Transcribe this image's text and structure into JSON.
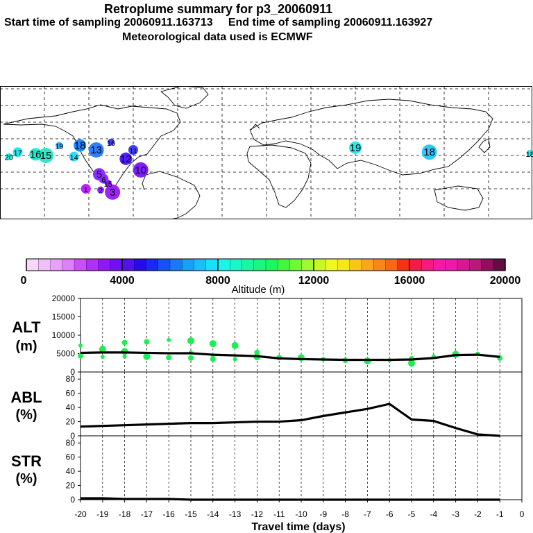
{
  "title": "Retroplume summary for p3_20060911",
  "subtitle_line": "Start time of sampling 20060911.163713     End time of sampling 20060911.163927",
  "met_line": "Meteorological data used is ECMWF",
  "map": {
    "labels": [
      {
        "text": "20",
        "lon": -174,
        "lat": 14,
        "color": "#2fe8e8"
      },
      {
        "text": "17",
        "lon": -168,
        "lat": 18,
        "color": "#27e8f0"
      },
      {
        "text": "16",
        "lon": -156,
        "lat": 16,
        "color": "#27e8d0"
      },
      {
        "text": "15",
        "lon": -149,
        "lat": 15,
        "color": "#2fe8c8"
      },
      {
        "text": "19",
        "lon": -140,
        "lat": 24,
        "color": "#2fa8ff"
      },
      {
        "text": "14",
        "lon": -130,
        "lat": 14,
        "color": "#2fe0ff"
      },
      {
        "text": "18",
        "lon": -126,
        "lat": 24,
        "color": "#1f88ff"
      },
      {
        "text": "13",
        "lon": -115,
        "lat": 20,
        "color": "#2f80ff"
      },
      {
        "text": "16",
        "lon": -105,
        "lat": 27,
        "color": "#3f3fff"
      },
      {
        "text": "11",
        "lon": -90,
        "lat": 20,
        "color": "#3f3fff"
      },
      {
        "text": "12",
        "lon": -95,
        "lat": 12,
        "color": "#5020ff"
      },
      {
        "text": "10",
        "lon": -85,
        "lat": 2,
        "color": "#7f1fff"
      },
      {
        "text": "15",
        "lon": -107,
        "lat": -10,
        "color": "#7f1fff"
      },
      {
        "text": "6",
        "lon": -110,
        "lat": -6,
        "color": "#8f2fff"
      },
      {
        "text": "5",
        "lon": -113,
        "lat": -2,
        "color": "#8f2fff"
      },
      {
        "text": "3",
        "lon": -104,
        "lat": -18,
        "color": "#a020ff"
      },
      {
        "text": "2",
        "lon": -112,
        "lat": -16,
        "color": "#a020ff"
      },
      {
        "text": "1",
        "lon": -122,
        "lat": -15,
        "color": "#c020ff"
      },
      {
        "text": "19",
        "lon": 60,
        "lat": 22,
        "color": "#2fe8e8"
      },
      {
        "text": "18",
        "lon": 110,
        "lat": 18,
        "color": "#2fc8ff"
      },
      {
        "text": "18",
        "lon": 178,
        "lat": 17,
        "color": "#2fe8e8"
      }
    ]
  },
  "colorbar": {
    "xlabel": "Altitude (m)",
    "tick_labels": [
      "0",
      "4000",
      "8000",
      "12000",
      "16000",
      "20000"
    ],
    "colors": [
      "#f8d8f8",
      "#f0c0f8",
      "#e8a0f8",
      "#e080f8",
      "#c850f8",
      "#b030f8",
      "#9018f8",
      "#7010f8",
      "#5010f0",
      "#2808f0",
      "#1828f8",
      "#1850f8",
      "#1878f8",
      "#18a0f8",
      "#18c0f8",
      "#18e0f8",
      "#18f8e8",
      "#18f8c8",
      "#18f8a0",
      "#18f880",
      "#18f860",
      "#40f840",
      "#70f830",
      "#a0f830",
      "#c8f820",
      "#f0f820",
      "#f8e818",
      "#f8c818",
      "#f8a818",
      "#f88818",
      "#f86818",
      "#f83018",
      "#f81848",
      "#f81880",
      "#f818a8",
      "#f018a8",
      "#d81890",
      "#b81878",
      "#901060",
      "#601040"
    ]
  },
  "chart_data": [
    {
      "type": "line",
      "panel_label_top": "ALT",
      "panel_label_bottom": "(m)",
      "ylim": [
        0,
        20000
      ],
      "y_ticks": [
        "0",
        "5000",
        "10000",
        "15000",
        "20000"
      ],
      "x": [
        -20,
        -19,
        -18,
        -17,
        -16,
        -15,
        -14,
        -13,
        -12,
        -11,
        -10,
        -9,
        -8,
        -7,
        -6,
        -5,
        -4,
        -3,
        -2,
        -1
      ],
      "series": [
        {
          "name": "median altitude",
          "values": [
            5200,
            5300,
            5300,
            5200,
            5100,
            5100,
            4700,
            4500,
            4300,
            3700,
            3500,
            3400,
            3300,
            3300,
            3300,
            3400,
            3800,
            4600,
            4700,
            4100
          ]
        }
      ],
      "scatter_values": [
        [
          -20,
          7200
        ],
        [
          -20,
          4400
        ],
        [
          -19,
          6200
        ],
        [
          -19,
          4100
        ],
        [
          -18,
          8000
        ],
        [
          -18,
          5600
        ],
        [
          -18,
          4200
        ],
        [
          -17,
          8200
        ],
        [
          -17,
          4200
        ],
        [
          -16,
          8700
        ],
        [
          -16,
          3900
        ],
        [
          -15,
          8500
        ],
        [
          -15,
          5300
        ],
        [
          -15,
          3800
        ],
        [
          -14,
          7700
        ],
        [
          -14,
          4500
        ],
        [
          -14,
          3500
        ],
        [
          -13,
          7200
        ],
        [
          -13,
          3500
        ],
        [
          -12,
          5300
        ],
        [
          -12,
          4100
        ],
        [
          -11,
          4100
        ],
        [
          -11,
          3900
        ],
        [
          -10,
          3900
        ],
        [
          -9,
          3500
        ],
        [
          -8,
          3200
        ],
        [
          -7,
          3000
        ],
        [
          -6,
          3200
        ],
        [
          -5,
          3600
        ],
        [
          -5,
          2400
        ],
        [
          -4,
          4200
        ],
        [
          -3,
          5000
        ],
        [
          -3,
          4800
        ],
        [
          -2,
          5000
        ],
        [
          -1,
          3800
        ]
      ]
    },
    {
      "type": "line",
      "panel_label_top": "ABL",
      "panel_label_bottom": "(%)",
      "ylim": [
        0,
        90
      ],
      "y_ticks": [
        "0",
        "20",
        "40",
        "60",
        "80"
      ],
      "x": [
        -20,
        -19,
        -18,
        -17,
        -16,
        -15,
        -14,
        -13,
        -12,
        -11,
        -10,
        -9,
        -8,
        -7,
        -6,
        -5,
        -4,
        -3,
        -2,
        -1
      ],
      "series": [
        {
          "name": "ABL fraction",
          "values": [
            13,
            14,
            15,
            16,
            17,
            18,
            18,
            19,
            20,
            20,
            22,
            28,
            33,
            38,
            45,
            23,
            21,
            11,
            2,
            0
          ]
        }
      ]
    },
    {
      "type": "line",
      "panel_label_top": "STR",
      "panel_label_bottom": "(%)",
      "ylim": [
        0,
        90
      ],
      "y_ticks": [
        "0",
        "20",
        "40",
        "60",
        "80"
      ],
      "x": [
        -20,
        -19,
        -18,
        -17,
        -16,
        -15,
        -14,
        -13,
        -12,
        -11,
        -10,
        -9,
        -8,
        -7,
        -6,
        -5,
        -4,
        -3,
        -2,
        -1
      ],
      "series": [
        {
          "name": "stratospheric fraction",
          "values": [
            2,
            2,
            1,
            1,
            1,
            0,
            0,
            0,
            0,
            0,
            0,
            0,
            0,
            0,
            0,
            0,
            0,
            0,
            0,
            0
          ]
        }
      ],
      "xlabel": "Travel time (days)",
      "x_ticks": [
        "-20",
        "-19",
        "-18",
        "-17",
        "-16",
        "-15",
        "-14",
        "-13",
        "-12",
        "-11",
        "-10",
        "-9",
        "-8",
        "-7",
        "-6",
        "-5",
        "-4",
        "-3",
        "-2",
        "-1",
        "0"
      ]
    }
  ]
}
